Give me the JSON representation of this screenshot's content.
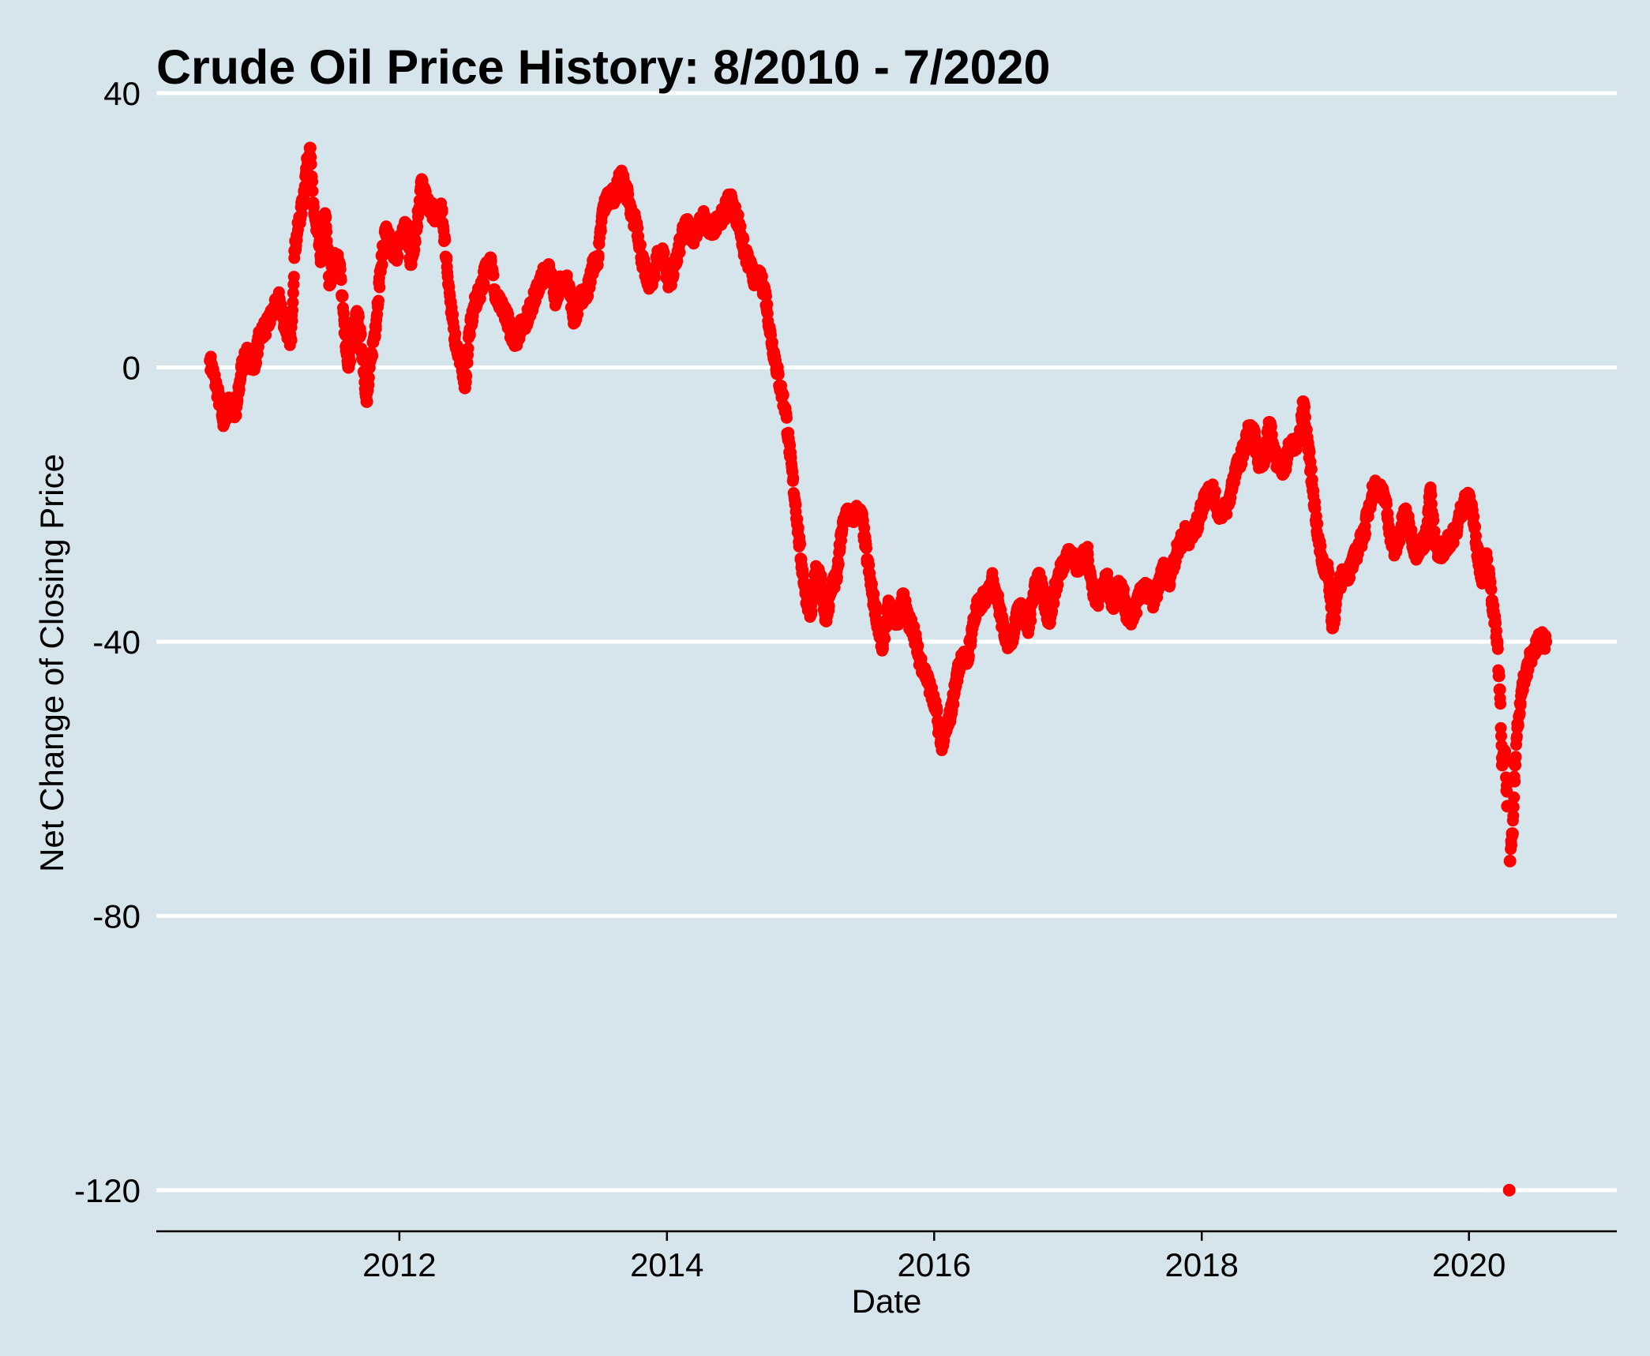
{
  "chart_data": {
    "type": "scatter",
    "title": "Crude Oil Price History: 8/2010 - 7/2020",
    "xlabel": "Date",
    "ylabel": "Net Change of Closing Price",
    "x_is_date": true,
    "xlim": [
      "2010-03-08",
      "2021-02-08"
    ],
    "ylim": [
      -126,
      40
    ],
    "x_ticks": [
      {
        "value": "2012-01-01",
        "label": "2012"
      },
      {
        "value": "2014-01-01",
        "label": "2014"
      },
      {
        "value": "2016-01-01",
        "label": "2016"
      },
      {
        "value": "2018-01-01",
        "label": "2018"
      },
      {
        "value": "2020-01-01",
        "label": "2020"
      }
    ],
    "y_ticks": [
      {
        "value": 40,
        "label": "40"
      },
      {
        "value": 0,
        "label": "0"
      },
      {
        "value": -40,
        "label": "-40"
      },
      {
        "value": -80,
        "label": "-80"
      },
      {
        "value": -120,
        "label": "-120"
      }
    ],
    "grid": "horizontal",
    "legend": "none",
    "series": [
      {
        "color": "#ff0000",
        "points": [
          [
            "2010-08-02",
            1
          ],
          [
            "2010-08-20",
            -3
          ],
          [
            "2010-09-08",
            -8
          ],
          [
            "2010-09-24",
            -5
          ],
          [
            "2010-10-11",
            -7
          ],
          [
            "2010-10-27",
            0
          ],
          [
            "2010-11-12",
            2
          ],
          [
            "2010-11-30",
            0
          ],
          [
            "2010-12-16",
            5
          ],
          [
            "2011-01-04",
            6
          ],
          [
            "2011-01-20",
            8
          ],
          [
            "2011-02-07",
            10
          ],
          [
            "2011-02-23",
            6
          ],
          [
            "2011-03-11",
            4
          ],
          [
            "2011-03-21",
            17
          ],
          [
            "2011-04-01",
            21
          ],
          [
            "2011-04-12",
            24
          ],
          [
            "2011-04-22",
            29
          ],
          [
            "2011-05-02",
            32
          ],
          [
            "2011-05-10",
            24
          ],
          [
            "2011-05-20",
            20
          ],
          [
            "2011-06-01",
            16
          ],
          [
            "2011-06-13",
            22
          ],
          [
            "2011-06-24",
            12
          ],
          [
            "2011-07-08",
            16
          ],
          [
            "2011-07-22",
            15
          ],
          [
            "2011-08-05",
            5
          ],
          [
            "2011-08-15",
            0
          ],
          [
            "2011-08-25",
            4
          ],
          [
            "2011-09-08",
            8
          ],
          [
            "2011-09-22",
            2
          ],
          [
            "2011-10-04",
            -5
          ],
          [
            "2011-10-17",
            2
          ],
          [
            "2011-10-28",
            6
          ],
          [
            "2011-11-10",
            14
          ],
          [
            "2011-11-24",
            20
          ],
          [
            "2011-12-08",
            18
          ],
          [
            "2011-12-22",
            16
          ],
          [
            "2012-01-05",
            19
          ],
          [
            "2012-01-19",
            21
          ],
          [
            "2012-02-02",
            15
          ],
          [
            "2012-02-16",
            20
          ],
          [
            "2012-03-01",
            27
          ],
          [
            "2012-03-15",
            24
          ],
          [
            "2012-03-29",
            23
          ],
          [
            "2012-04-12",
            22
          ],
          [
            "2012-04-26",
            23
          ],
          [
            "2012-05-08",
            16
          ],
          [
            "2012-05-22",
            8
          ],
          [
            "2012-06-05",
            3
          ],
          [
            "2012-06-19",
            1
          ],
          [
            "2012-06-28",
            -3
          ],
          [
            "2012-07-10",
            5
          ],
          [
            "2012-07-24",
            9
          ],
          [
            "2012-08-08",
            11
          ],
          [
            "2012-08-22",
            14
          ],
          [
            "2012-09-06",
            16
          ],
          [
            "2012-09-20",
            10
          ],
          [
            "2012-10-04",
            9
          ],
          [
            "2012-10-18",
            8
          ],
          [
            "2012-11-01",
            5
          ],
          [
            "2012-11-15",
            4
          ],
          [
            "2012-11-29",
            6
          ],
          [
            "2012-12-13",
            7
          ],
          [
            "2013-01-03",
            10
          ],
          [
            "2013-01-24",
            13
          ],
          [
            "2013-02-12",
            15
          ],
          [
            "2013-03-01",
            10
          ],
          [
            "2013-03-20",
            13
          ],
          [
            "2013-04-08",
            12
          ],
          [
            "2013-04-22",
            7
          ],
          [
            "2013-05-08",
            10
          ],
          [
            "2013-05-28",
            11
          ],
          [
            "2013-06-14",
            15
          ],
          [
            "2013-06-27",
            16
          ],
          [
            "2013-07-10",
            23
          ],
          [
            "2013-07-26",
            25
          ],
          [
            "2013-08-12",
            25
          ],
          [
            "2013-08-28",
            28
          ],
          [
            "2013-09-12",
            26
          ],
          [
            "2013-09-26",
            22
          ],
          [
            "2013-10-10",
            21
          ],
          [
            "2013-10-24",
            16
          ],
          [
            "2013-11-07",
            13
          ],
          [
            "2013-11-21",
            12
          ],
          [
            "2013-12-05",
            16
          ],
          [
            "2013-12-19",
            17
          ],
          [
            "2014-01-08",
            12
          ],
          [
            "2014-01-24",
            15
          ],
          [
            "2014-02-10",
            19
          ],
          [
            "2014-02-25",
            21
          ],
          [
            "2014-03-12",
            19
          ],
          [
            "2014-03-26",
            20
          ],
          [
            "2014-04-10",
            22
          ],
          [
            "2014-04-24",
            20
          ],
          [
            "2014-05-08",
            20
          ],
          [
            "2014-05-22",
            22
          ],
          [
            "2014-06-05",
            22
          ],
          [
            "2014-06-20",
            25
          ],
          [
            "2014-07-03",
            23
          ],
          [
            "2014-07-17",
            21
          ],
          [
            "2014-07-31",
            17
          ],
          [
            "2014-08-14",
            15
          ],
          [
            "2014-08-28",
            13
          ],
          [
            "2014-09-12",
            13
          ],
          [
            "2014-09-26",
            11
          ],
          [
            "2014-10-10",
            5
          ],
          [
            "2014-10-24",
            1
          ],
          [
            "2014-11-07",
            -3
          ],
          [
            "2014-11-20",
            -6
          ],
          [
            "2014-12-04",
            -13
          ],
          [
            "2014-12-18",
            -20
          ],
          [
            "2015-01-02",
            -28
          ],
          [
            "2015-01-15",
            -33
          ],
          [
            "2015-01-29",
            -36
          ],
          [
            "2015-02-11",
            -30
          ],
          [
            "2015-02-25",
            -31
          ],
          [
            "2015-03-12",
            -37
          ],
          [
            "2015-03-26",
            -32
          ],
          [
            "2015-04-09",
            -31
          ],
          [
            "2015-04-23",
            -24
          ],
          [
            "2015-05-07",
            -21
          ],
          [
            "2015-05-21",
            -22
          ],
          [
            "2015-06-04",
            -21
          ],
          [
            "2015-06-18",
            -22
          ],
          [
            "2015-07-02",
            -28
          ],
          [
            "2015-07-16",
            -33
          ],
          [
            "2015-07-30",
            -37
          ],
          [
            "2015-08-13",
            -41
          ],
          [
            "2015-08-27",
            -35
          ],
          [
            "2015-09-10",
            -36
          ],
          [
            "2015-09-24",
            -37
          ],
          [
            "2015-10-08",
            -33
          ],
          [
            "2015-10-22",
            -37
          ],
          [
            "2015-11-05",
            -38
          ],
          [
            "2015-11-19",
            -42
          ],
          [
            "2015-12-03",
            -44
          ],
          [
            "2015-12-17",
            -46
          ],
          [
            "2016-01-06",
            -50
          ],
          [
            "2016-01-20",
            -55
          ],
          [
            "2016-02-03",
            -53
          ],
          [
            "2016-02-17",
            -50
          ],
          [
            "2016-03-03",
            -45
          ],
          [
            "2016-03-17",
            -42
          ],
          [
            "2016-03-31",
            -43
          ],
          [
            "2016-04-14",
            -38
          ],
          [
            "2016-04-28",
            -35
          ],
          [
            "2016-05-12",
            -34
          ],
          [
            "2016-05-26",
            -33
          ],
          [
            "2016-06-09",
            -31
          ],
          [
            "2016-06-23",
            -34
          ],
          [
            "2016-07-07",
            -38
          ],
          [
            "2016-07-21",
            -40
          ],
          [
            "2016-08-04",
            -39
          ],
          [
            "2016-08-18",
            -35
          ],
          [
            "2016-09-01",
            -36
          ],
          [
            "2016-09-15",
            -38
          ],
          [
            "2016-09-29",
            -33
          ],
          [
            "2016-10-13",
            -30
          ],
          [
            "2016-10-27",
            -34
          ],
          [
            "2016-11-10",
            -37
          ],
          [
            "2016-11-24",
            -33
          ],
          [
            "2016-12-08",
            -30
          ],
          [
            "2016-12-22",
            -28
          ],
          [
            "2017-01-11",
            -27
          ],
          [
            "2017-01-25",
            -29
          ],
          [
            "2017-02-08",
            -28
          ],
          [
            "2017-02-22",
            -27
          ],
          [
            "2017-03-08",
            -32
          ],
          [
            "2017-03-22",
            -34
          ],
          [
            "2017-04-05",
            -32
          ],
          [
            "2017-04-19",
            -31
          ],
          [
            "2017-05-03",
            -35
          ],
          [
            "2017-05-17",
            -32
          ],
          [
            "2017-05-31",
            -33
          ],
          [
            "2017-06-14",
            -37
          ],
          [
            "2017-06-28",
            -36
          ],
          [
            "2017-07-12",
            -34
          ],
          [
            "2017-07-26",
            -32
          ],
          [
            "2017-08-09",
            -33
          ],
          [
            "2017-08-23",
            -34
          ],
          [
            "2017-09-06",
            -32
          ],
          [
            "2017-09-20",
            -29
          ],
          [
            "2017-10-04",
            -31
          ],
          [
            "2017-10-18",
            -28
          ],
          [
            "2017-11-01",
            -26
          ],
          [
            "2017-11-15",
            -24
          ],
          [
            "2017-11-29",
            -25
          ],
          [
            "2017-12-13",
            -24
          ],
          [
            "2018-01-04",
            -20
          ],
          [
            "2018-01-18",
            -18
          ],
          [
            "2018-02-01",
            -18
          ],
          [
            "2018-02-15",
            -21
          ],
          [
            "2018-03-01",
            -21
          ],
          [
            "2018-03-15",
            -20
          ],
          [
            "2018-03-29",
            -16
          ],
          [
            "2018-04-12",
            -14
          ],
          [
            "2018-04-26",
            -12
          ],
          [
            "2018-05-10",
            -9
          ],
          [
            "2018-05-24",
            -10
          ],
          [
            "2018-06-07",
            -14
          ],
          [
            "2018-06-21",
            -13
          ],
          [
            "2018-07-05",
            -8
          ],
          [
            "2018-07-19",
            -13
          ],
          [
            "2018-08-02",
            -14
          ],
          [
            "2018-08-16",
            -15
          ],
          [
            "2018-08-30",
            -11
          ],
          [
            "2018-09-13",
            -12
          ],
          [
            "2018-09-27",
            -10
          ],
          [
            "2018-10-05",
            -5
          ],
          [
            "2018-10-18",
            -11
          ],
          [
            "2018-11-01",
            -18
          ],
          [
            "2018-11-15",
            -25
          ],
          [
            "2018-11-29",
            -29
          ],
          [
            "2018-12-13",
            -30
          ],
          [
            "2018-12-24",
            -38
          ],
          [
            "2019-01-10",
            -32
          ],
          [
            "2019-01-24",
            -30
          ],
          [
            "2019-02-07",
            -30
          ],
          [
            "2019-02-21",
            -28
          ],
          [
            "2019-03-07",
            -26
          ],
          [
            "2019-03-21",
            -24
          ],
          [
            "2019-04-04",
            -20
          ],
          [
            "2019-04-18",
            -17
          ],
          [
            "2019-05-02",
            -18
          ],
          [
            "2019-05-16",
            -19
          ],
          [
            "2019-05-30",
            -24
          ],
          [
            "2019-06-13",
            -27
          ],
          [
            "2019-06-27",
            -24
          ],
          [
            "2019-07-11",
            -21
          ],
          [
            "2019-07-25",
            -24
          ],
          [
            "2019-08-08",
            -27
          ],
          [
            "2019-08-22",
            -26
          ],
          [
            "2019-09-05",
            -25
          ],
          [
            "2019-09-17",
            -18
          ],
          [
            "2019-10-01",
            -26
          ],
          [
            "2019-10-15",
            -27
          ],
          [
            "2019-10-29",
            -26
          ],
          [
            "2019-11-12",
            -25
          ],
          [
            "2019-11-26",
            -24
          ],
          [
            "2019-12-10",
            -21
          ],
          [
            "2019-12-24",
            -19
          ],
          [
            "2020-01-08",
            -20
          ],
          [
            "2020-01-22",
            -26
          ],
          [
            "2020-02-05",
            -31
          ],
          [
            "2020-02-19",
            -28
          ],
          [
            "2020-03-04",
            -34
          ],
          [
            "2020-03-18",
            -40
          ],
          [
            "2020-03-25",
            -47
          ],
          [
            "2020-04-01",
            -58
          ],
          [
            "2020-04-08",
            -56
          ],
          [
            "2020-04-15",
            -64
          ],
          [
            "2020-04-20",
            -120
          ],
          [
            "2020-04-22",
            -72
          ],
          [
            "2020-04-29",
            -68
          ],
          [
            "2020-05-06",
            -58
          ],
          [
            "2020-05-13",
            -52
          ],
          [
            "2020-05-20",
            -49
          ],
          [
            "2020-05-27",
            -46
          ],
          [
            "2020-06-03",
            -45
          ],
          [
            "2020-06-10",
            -44
          ],
          [
            "2020-06-17",
            -42
          ],
          [
            "2020-06-24",
            -42
          ],
          [
            "2020-07-01",
            -41
          ],
          [
            "2020-07-08",
            -40
          ],
          [
            "2020-07-15",
            -39
          ],
          [
            "2020-07-22",
            -40
          ],
          [
            "2020-07-29",
            -40
          ]
        ]
      }
    ]
  },
  "colors": {
    "panel_background": "#d6e4eb",
    "grid": "#ffffff",
    "axis": "#000000",
    "point": "#ff0000",
    "text": "#000000"
  }
}
